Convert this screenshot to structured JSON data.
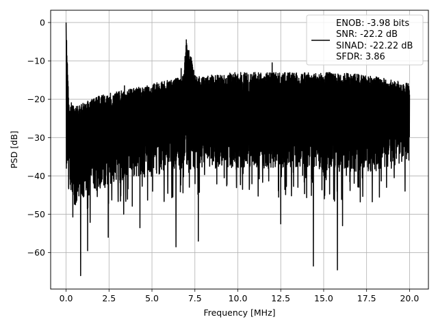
{
  "chart_data": {
    "type": "line",
    "title": "",
    "xlabel": "Frequency [MHz]",
    "ylabel": "PSD [dB]",
    "xlim": [
      -0.9,
      21.1
    ],
    "ylim": [
      -69.5,
      3.2
    ],
    "xticks": [
      0.0,
      2.5,
      5.0,
      7.5,
      10.0,
      12.5,
      15.0,
      17.5,
      20.0
    ],
    "xtick_labels": [
      "0.0",
      "2.5",
      "5.0",
      "7.5",
      "10.0",
      "12.5",
      "15.0",
      "17.5",
      "20.0"
    ],
    "yticks": [
      0,
      -10,
      -20,
      -30,
      -40,
      -50,
      -60
    ],
    "ytick_labels": [
      "0",
      "−10",
      "−20",
      "−30",
      "−40",
      "−50",
      "−60"
    ],
    "grid": true,
    "legend_position": "top-right",
    "legend_lines": [
      "ENOB: -3.98 bits",
      "SNR: -22.2 dB",
      "SINAD: -22.22 dB",
      "SFDR: 3.86"
    ],
    "series": [
      {
        "color": "#000000",
        "frequency_range_mhz": [
          0,
          20
        ],
        "envelope_upper": [
          [
            0.0,
            0.0
          ],
          [
            0.15,
            -20
          ],
          [
            0.5,
            -22
          ],
          [
            1.0,
            -21
          ],
          [
            2.0,
            -19
          ],
          [
            4.0,
            -17
          ],
          [
            6.0,
            -15
          ],
          [
            6.8,
            -14
          ],
          [
            7.0,
            -4.5
          ],
          [
            7.3,
            -9
          ],
          [
            7.6,
            -14
          ],
          [
            10.0,
            -13
          ],
          [
            12.0,
            -13
          ],
          [
            14.0,
            -13
          ],
          [
            16.0,
            -13
          ],
          [
            18.0,
            -14
          ],
          [
            20.0,
            -16
          ]
        ],
        "envelope_lower": [
          [
            0.0,
            -38
          ],
          [
            0.5,
            -48
          ],
          [
            2.0,
            -43
          ],
          [
            5.0,
            -39
          ],
          [
            8.0,
            -38
          ],
          [
            10.0,
            -38
          ],
          [
            12.0,
            -38
          ],
          [
            14.0,
            -38
          ],
          [
            16.0,
            -39
          ],
          [
            18.0,
            -39
          ],
          [
            20.0,
            -36
          ]
        ],
        "notable_dips": [
          [
            0.85,
            -66
          ],
          [
            1.25,
            -59.5
          ],
          [
            2.45,
            -56
          ],
          [
            3.35,
            -50
          ],
          [
            4.3,
            -53.5
          ],
          [
            6.4,
            -58.5
          ],
          [
            7.7,
            -57
          ],
          [
            12.5,
            -52.5
          ],
          [
            14.4,
            -63.5
          ],
          [
            15.8,
            -64.5
          ],
          [
            16.1,
            -53
          ]
        ],
        "notable_peaks": [
          [
            0.0,
            0.0
          ],
          [
            7.0,
            -4.5
          ],
          [
            12.0,
            -10.5
          ],
          [
            3.4,
            -16.5
          ],
          [
            6.7,
            -12
          ]
        ]
      }
    ]
  }
}
